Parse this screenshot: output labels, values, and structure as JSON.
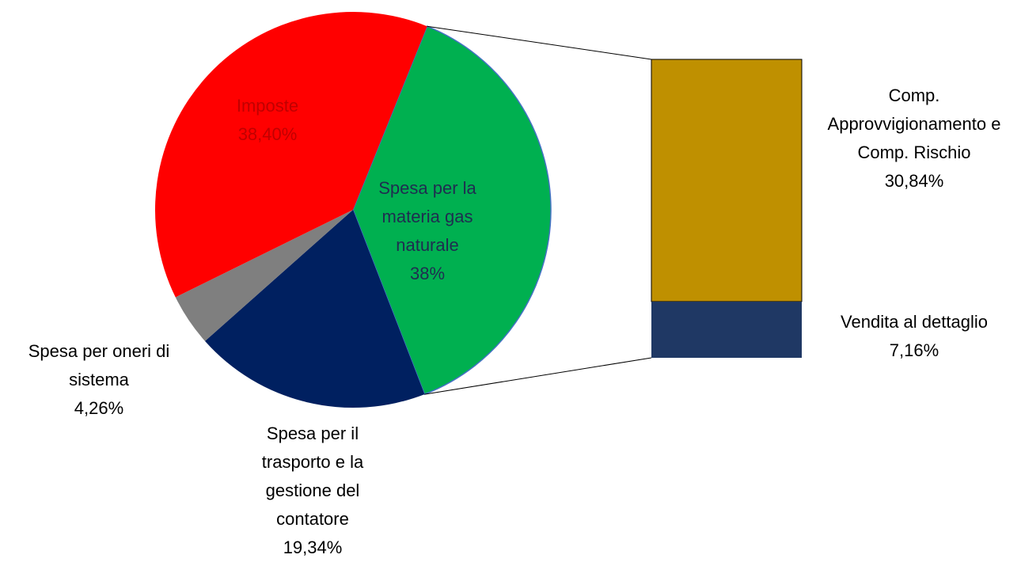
{
  "chart_data": {
    "type": "pie-bar",
    "pie": {
      "labels": [
        "Spesa per la materia gas naturale",
        "Spesa per il trasporto e la gestione del contatore",
        "Spesa per oneri di sistema",
        "Imposte"
      ],
      "values": [
        38,
        19.34,
        4.26,
        38.4
      ],
      "value_labels": [
        "38%",
        "19,34%",
        "4,26%",
        "38,40%"
      ],
      "colors": [
        "#00b050",
        "#002060",
        "#7f7f7f",
        "#ff0000"
      ]
    },
    "bar": {
      "labels": [
        "Comp. Approvvigionamento e  Comp. Rischio",
        "Vendita al dettaglio"
      ],
      "values": [
        30.84,
        7.16
      ],
      "value_labels": [
        "30,84%",
        "7,16%"
      ],
      "colors": [
        "#bf9000",
        "#1f3864"
      ]
    }
  }
}
